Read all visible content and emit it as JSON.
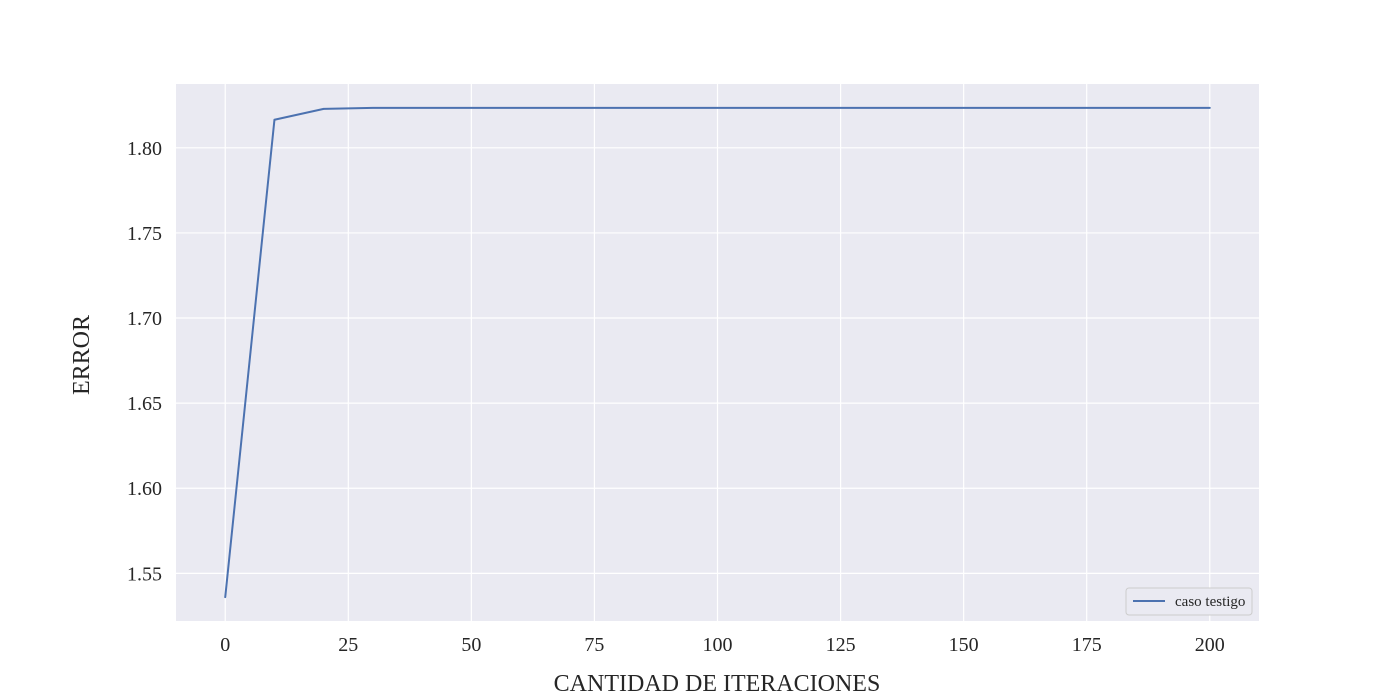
{
  "chart_data": {
    "type": "line",
    "title": "",
    "xlabel": "CANTIDAD DE ITERACIONES",
    "ylabel": "ERROR",
    "xlim": [
      -10,
      210
    ],
    "ylim": [
      1.522,
      1.8375
    ],
    "xticks": [
      0,
      25,
      50,
      75,
      100,
      125,
      150,
      175,
      200
    ],
    "yticks": [
      1.55,
      1.6,
      1.65,
      1.7,
      1.75,
      1.8
    ],
    "xtick_labels": [
      "0",
      "25",
      "50",
      "75",
      "100",
      "125",
      "150",
      "175",
      "200"
    ],
    "ytick_labels": [
      "1.55",
      "1.60",
      "1.65",
      "1.70",
      "1.75",
      "1.80"
    ],
    "grid": true,
    "legend_position": "lower right",
    "colors": {
      "plot_background": "#eaeaf2",
      "grid": "#ffffff",
      "text": "#262626"
    },
    "series": [
      {
        "name": "caso testigo",
        "color": "#4c72b0",
        "x": [
          0,
          10,
          20,
          30,
          40,
          50,
          60,
          70,
          80,
          90,
          100,
          110,
          120,
          130,
          140,
          150,
          160,
          170,
          180,
          190,
          200
        ],
        "y": [
          1.536,
          1.8165,
          1.8229,
          1.8235,
          1.8235,
          1.8235,
          1.8235,
          1.8235,
          1.8235,
          1.8235,
          1.8235,
          1.8235,
          1.8235,
          1.8235,
          1.8235,
          1.8235,
          1.8235,
          1.8235,
          1.8235,
          1.8235,
          1.8235
        ]
      }
    ]
  }
}
